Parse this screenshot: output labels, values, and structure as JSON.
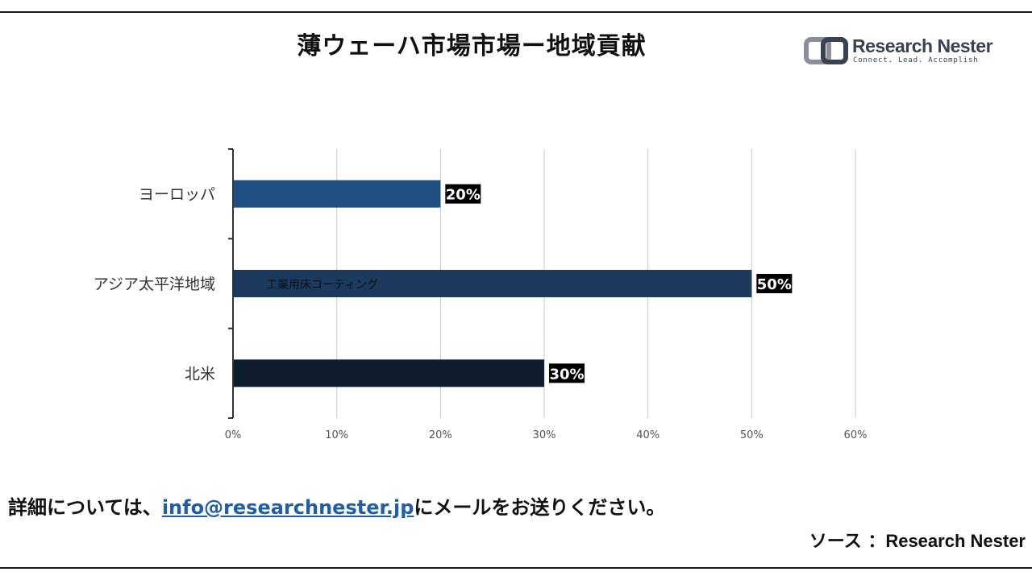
{
  "title": "薄ウェーハ市場市場ー地域貢献",
  "logo": {
    "name": "Research Nester",
    "tagline": "Connect. Lead. Accomplish"
  },
  "chart_data": {
    "type": "bar",
    "orientation": "horizontal",
    "categories": [
      "ヨーロッパ",
      "アジア太平洋地域",
      "北米"
    ],
    "values": [
      20,
      50,
      30
    ],
    "value_labels": [
      "20%",
      "50%",
      "30%"
    ],
    "bar_colors": [
      "#1f4e80",
      "#1b3a5e",
      "#0e1e2e"
    ],
    "xlim": [
      0,
      60
    ],
    "xticks": [
      "0%",
      "10%",
      "20%",
      "30%",
      "40%",
      "50%",
      "60%"
    ],
    "grid": true,
    "watermark": "工業用床コーティング"
  },
  "footer": {
    "contact_prefix": "詳細については、",
    "email": "info@researchnester.jp",
    "contact_suffix": "にメールをお送りください。",
    "source_prefix": "ソース ：",
    "source_name": "Research Nester"
  }
}
